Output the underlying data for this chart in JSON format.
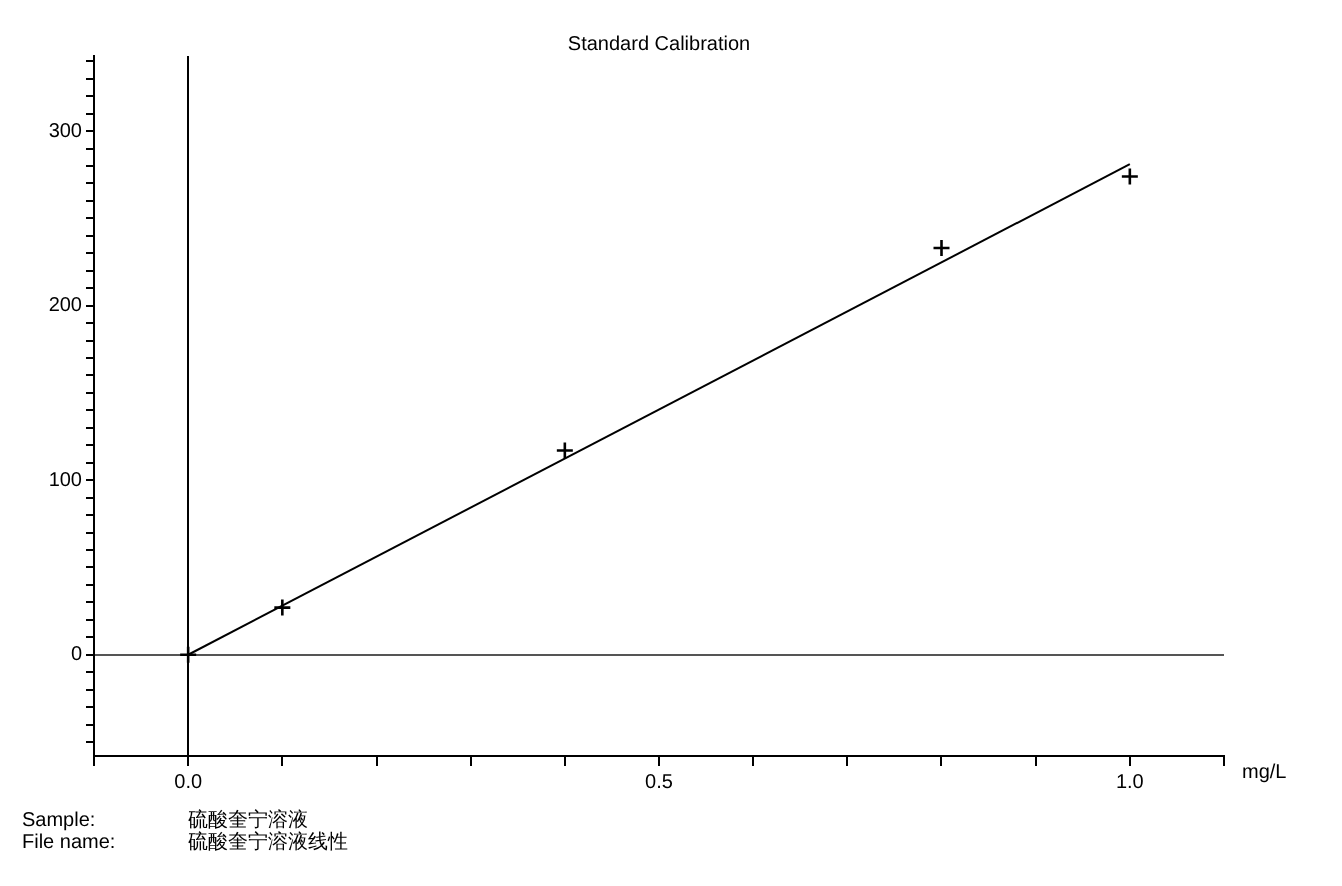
{
  "chart_data": {
    "type": "scatter",
    "title": "Standard Calibration",
    "xlabel": "mg/L",
    "marker": "cross",
    "xlim": [
      -0.1,
      1.1
    ],
    "ylim": [
      -58,
      343
    ],
    "xticks": [
      {
        "value": -0.1,
        "label": null
      },
      {
        "value": 0,
        "label": "0.0"
      },
      {
        "value": 0.1,
        "label": null
      },
      {
        "value": 0.2,
        "label": null
      },
      {
        "value": 0.3,
        "label": null
      },
      {
        "value": 0.4,
        "label": null
      },
      {
        "value": 0.5,
        "label": "0.5"
      },
      {
        "value": 0.6,
        "label": null
      },
      {
        "value": 0.7,
        "label": null
      },
      {
        "value": 0.8,
        "label": null
      },
      {
        "value": 0.9,
        "label": null
      },
      {
        "value": 1,
        "label": "1.0"
      },
      {
        "value": 1.1,
        "label": null
      }
    ],
    "yticks": [
      {
        "value": -50,
        "label": null
      },
      {
        "value": -40,
        "label": null
      },
      {
        "value": -30,
        "label": null
      },
      {
        "value": -20,
        "label": null
      },
      {
        "value": -10,
        "label": null
      },
      0,
      {
        "value": 10,
        "label": null
      },
      {
        "value": 20,
        "label": null
      },
      {
        "value": 30,
        "label": null
      },
      {
        "value": 40,
        "label": null
      },
      {
        "value": 50,
        "label": null
      },
      {
        "value": 60,
        "label": null
      },
      {
        "value": 70,
        "label": null
      },
      {
        "value": 80,
        "label": null
      },
      {
        "value": 90,
        "label": null
      },
      100,
      {
        "value": 110,
        "label": null
      },
      {
        "value": 120,
        "label": null
      },
      {
        "value": 130,
        "label": null
      },
      {
        "value": 140,
        "label": null
      },
      {
        "value": 150,
        "label": null
      },
      {
        "value": 160,
        "label": null
      },
      {
        "value": 170,
        "label": null
      },
      {
        "value": 180,
        "label": null
      },
      {
        "value": 190,
        "label": null
      },
      200,
      {
        "value": 210,
        "label": null
      },
      {
        "value": 220,
        "label": null
      },
      {
        "value": 230,
        "label": null
      },
      {
        "value": 240,
        "label": null
      },
      {
        "value": 250,
        "label": null
      },
      {
        "value": 260,
        "label": null
      },
      {
        "value": 270,
        "label": null
      },
      {
        "value": 280,
        "label": null
      },
      {
        "value": 290,
        "label": null
      },
      300,
      {
        "value": 310,
        "label": null
      },
      {
        "value": 320,
        "label": null
      },
      {
        "value": 330,
        "label": null
      },
      {
        "value": 340,
        "label": null
      }
    ],
    "series": [
      {
        "type": "scatter",
        "color": "#000000",
        "x": [
          0,
          0.1,
          0.4,
          0.8,
          1.0
        ],
        "values": [
          0,
          27,
          117,
          233,
          274
        ]
      },
      {
        "type": "line",
        "color": "#000000",
        "marker": "none",
        "x": [
          0,
          1.0
        ],
        "values": [
          0,
          281
        ]
      }
    ],
    "ref_lines": [
      {
        "axis": "x",
        "value": 0,
        "color": "#000000"
      },
      {
        "axis": "y",
        "value": 0,
        "color": "#555555"
      }
    ],
    "annotations": [
      "Sample: 硫酸奎宁溶液",
      "File name: 硫酸奎宁溶液线性"
    ]
  }
}
